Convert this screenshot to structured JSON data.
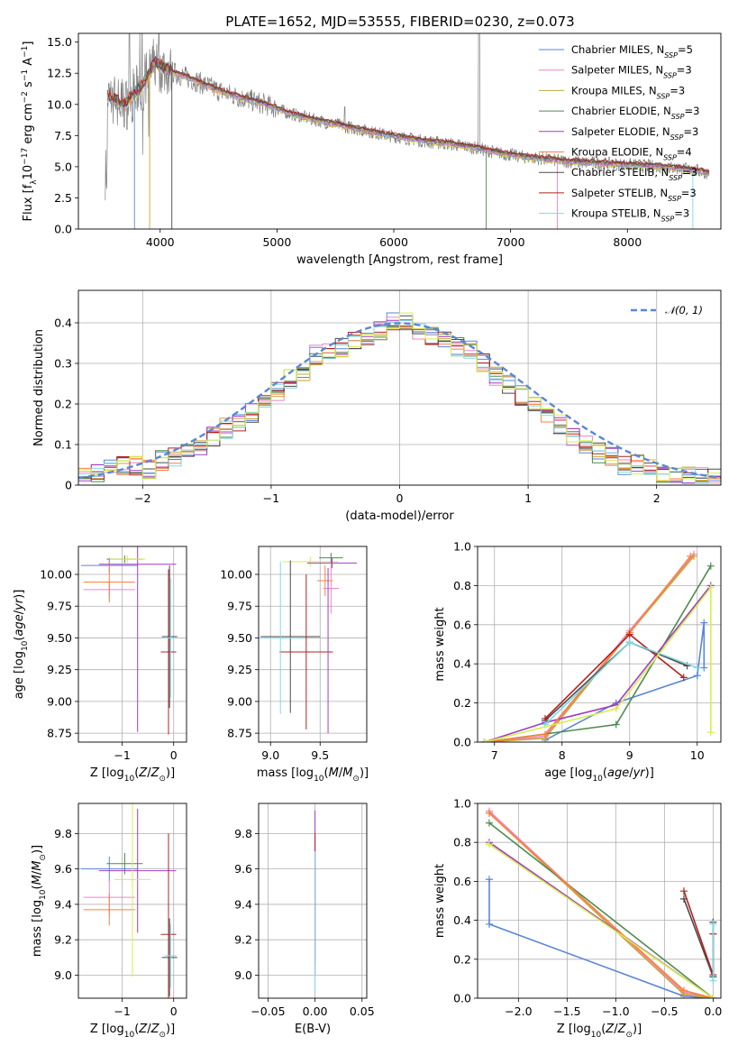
{
  "figure": {
    "title": "PLATE=1652, MJD=53555, FIBERID=0230, z=0.073"
  },
  "colors": {
    "series": [
      "#5a86d8",
      "#e887c4",
      "#c9a43a",
      "#4f8a4f",
      "#a23cc4",
      "#ff7f3f",
      "#4a4a4a",
      "#b22222",
      "#7fd9e6"
    ],
    "observed": "#808080",
    "lime": "#d4ef4a",
    "normal_curve": "#5a86d8"
  },
  "chart_data": [
    {
      "id": "spectrum",
      "type": "line",
      "xlabel": "wavelength [Angstrom, rest frame]",
      "ylabel": "Flux [f_λ10^-17 erg cm^-2 s^-1 A^-1]",
      "xlim": [
        3300,
        8800
      ],
      "ylim": [
        0,
        15.7
      ],
      "xticks": [
        4000,
        5000,
        6000,
        7000,
        8000
      ],
      "yticks": [
        0.0,
        2.5,
        5.0,
        7.5,
        10.0,
        12.5,
        15.0
      ],
      "grid": false,
      "legend_position": "top-right",
      "legend": [
        {
          "label": "Chabrier MILES, N",
          "sub": "SSP",
          "tail": "=5"
        },
        {
          "label": "Salpeter MILES, N",
          "sub": "SSP",
          "tail": "=3"
        },
        {
          "label": "Kroupa MILES, N",
          "sub": "SSP",
          "tail": "=3"
        },
        {
          "label": "Chabrier ELODIE, N",
          "sub": "SSP",
          "tail": "=3"
        },
        {
          "label": "Salpeter ELODIE, N",
          "sub": "SSP",
          "tail": "=3"
        },
        {
          "label": "Kroupa ELODIE, N",
          "sub": "SSP",
          "tail": "=4"
        },
        {
          "label": "Chabrier STELIB, N",
          "sub": "SSP",
          "tail": "=3"
        },
        {
          "label": "Salpeter STELIB, N",
          "sub": "SSP",
          "tail": "=3"
        },
        {
          "label": "Kroupa STELIB, N",
          "sub": "SSP",
          "tail": "=3"
        }
      ],
      "model_continuum": [
        [
          3550,
          10.6
        ],
        [
          3700,
          10.0
        ],
        [
          3850,
          11.5
        ],
        [
          3950,
          13.3
        ],
        [
          4100,
          12.6
        ],
        [
          4300,
          11.9
        ],
        [
          4500,
          11.1
        ],
        [
          4700,
          10.5
        ],
        [
          4900,
          10.0
        ],
        [
          5100,
          9.3
        ],
        [
          5300,
          8.8
        ],
        [
          5500,
          8.4
        ],
        [
          5700,
          8.0
        ],
        [
          5900,
          7.6
        ],
        [
          6100,
          7.3
        ],
        [
          6300,
          7.0
        ],
        [
          6500,
          6.8
        ],
        [
          6700,
          6.5
        ],
        [
          6900,
          6.1
        ],
        [
          7100,
          5.8
        ],
        [
          7300,
          5.6
        ],
        [
          7500,
          5.4
        ],
        [
          7700,
          5.3
        ],
        [
          7900,
          5.2
        ],
        [
          8100,
          5.1
        ],
        [
          8300,
          5.0
        ],
        [
          8500,
          4.8
        ],
        [
          8700,
          4.5
        ]
      ]
    },
    {
      "id": "residual-histogram",
      "type": "step",
      "xlabel": "(data-model)/error",
      "ylabel": "Normed distribution",
      "xlim": [
        -2.5,
        2.5
      ],
      "ylim": [
        0,
        0.48
      ],
      "xticks": [
        -2,
        -1,
        0,
        1,
        2
      ],
      "yticks": [
        0.0,
        0.1,
        0.2,
        0.3,
        0.4
      ],
      "grid": true,
      "legend_position": "top-right",
      "normal_label": "𝒩(0, 1)",
      "bin_width": 0.1,
      "bin_start": -2.5,
      "base_heights": [
        0.02,
        0.03,
        0.04,
        0.05,
        0.05,
        0.04,
        0.06,
        0.07,
        0.08,
        0.1,
        0.12,
        0.14,
        0.15,
        0.18,
        0.2,
        0.23,
        0.26,
        0.28,
        0.32,
        0.33,
        0.34,
        0.36,
        0.37,
        0.38,
        0.4,
        0.4,
        0.38,
        0.37,
        0.36,
        0.34,
        0.33,
        0.3,
        0.27,
        0.25,
        0.22,
        0.2,
        0.17,
        0.15,
        0.12,
        0.1,
        0.08,
        0.07,
        0.05,
        0.05,
        0.04,
        0.03,
        0.03,
        0.02,
        0.02,
        0.02
      ]
    },
    {
      "id": "age-vs-z",
      "type": "errorbar",
      "xlabel": "Z [log10(Z/Z⊙)]",
      "ylabel": "age [log10(age/yr)]",
      "xlim": [
        -1.85,
        0.25
      ],
      "ylim": [
        8.68,
        10.22
      ],
      "xticks": [
        -1,
        0
      ],
      "yticks": [
        8.75,
        9.0,
        9.25,
        9.5,
        9.75,
        10.0
      ],
      "grid": true,
      "points": [
        {
          "x": -1.25,
          "xerr": 0.55,
          "y": 10.07,
          "yerr": 0.06,
          "c": 0
        },
        {
          "x": -1.25,
          "xerr": 0.5,
          "y": 9.88,
          "yerr": 0.07,
          "c": 1
        },
        {
          "x": -1.25,
          "xerr": 0.5,
          "y": 9.94,
          "yerr": 0.16,
          "c": 5
        },
        {
          "x": -0.95,
          "xerr": 0.35,
          "y": 10.12,
          "yerr": 0.03,
          "c": 3
        },
        {
          "x": -0.7,
          "xerr": 0.75,
          "y": 10.08,
          "yerr": 1.32,
          "c": 4
        },
        {
          "x": -0.9,
          "xerr": 0.35,
          "y": 10.12,
          "yerr": 0.03,
          "c": 9
        },
        {
          "x": -0.1,
          "xerr": 0.15,
          "y": 9.39,
          "yerr": 0.65,
          "c": 7
        },
        {
          "x": -0.08,
          "xerr": 0.15,
          "y": 9.51,
          "yerr": 0.56,
          "c": 6
        },
        {
          "x": -0.06,
          "xerr": 0.12,
          "y": 9.5,
          "yerr": 0.47,
          "c": 8
        }
      ]
    },
    {
      "id": "age-vs-mass",
      "type": "errorbar",
      "xlabel": "mass [log10(M/M⊙)]",
      "ylabel": "",
      "xlim": [
        8.88,
        9.97
      ],
      "ylim": [
        8.68,
        10.22
      ],
      "xticks": [
        9.0,
        9.5
      ],
      "yticks": [
        8.75,
        9.0,
        9.25,
        9.5,
        9.75,
        10.0
      ],
      "grid": true,
      "points": [
        {
          "x": 9.4,
          "xerr": 0.28,
          "y": 10.1,
          "yerr": 0.04,
          "c": 9
        },
        {
          "x": 9.62,
          "xerr": 0.25,
          "y": 10.09,
          "yerr": 0.04,
          "c": 4
        },
        {
          "x": 9.61,
          "xerr": 0.12,
          "y": 10.13,
          "yerr": 0.04,
          "c": 3
        },
        {
          "x": 9.55,
          "xerr": 0.08,
          "y": 9.95,
          "yerr": 0.12,
          "c": 5
        },
        {
          "x": 9.61,
          "xerr": 0.08,
          "y": 9.89,
          "yerr": 0.2,
          "c": 1
        },
        {
          "x": 9.2,
          "xerr": 0.3,
          "y": 9.51,
          "yerr": 0.6,
          "c": 6
        },
        {
          "x": 9.36,
          "xerr": 0.27,
          "y": 9.39,
          "yerr": 0.61,
          "c": 7
        },
        {
          "x": 9.1,
          "xerr": 0.22,
          "y": 9.5,
          "yerr": 0.6,
          "c": 8
        },
        {
          "x": 9.58,
          "xerr": 0.0,
          "y": 9.4,
          "yerr": 0.65,
          "c": 4
        }
      ]
    },
    {
      "id": "weight-vs-age",
      "type": "line",
      "xlabel": "age [log10(age/yr)]",
      "ylabel": "mass weight",
      "xlim": [
        6.75,
        10.35
      ],
      "ylim": [
        0,
        1.0
      ],
      "xticks": [
        7,
        8,
        9,
        10
      ],
      "yticks": [
        0.0,
        0.2,
        0.4,
        0.6,
        0.8,
        1.0
      ],
      "grid": true,
      "series": [
        {
          "c": 0,
          "x": [
            7.75,
            8.8,
            10.0,
            10.1,
            10.1
          ],
          "y": [
            0.01,
            0.2,
            0.34,
            0.61,
            0.38
          ]
        },
        {
          "c": 1,
          "x": [
            6.85,
            7.75,
            9.0,
            9.95
          ],
          "y": [
            0.0,
            0.03,
            0.57,
            0.96
          ]
        },
        {
          "c": 2,
          "x": [
            6.85,
            7.75,
            9.0,
            9.95
          ],
          "y": [
            0.0,
            0.02,
            0.56,
            0.95
          ]
        },
        {
          "c": 3,
          "x": [
            6.85,
            8.8,
            10.2
          ],
          "y": [
            0.0,
            0.09,
            0.9
          ]
        },
        {
          "c": 4,
          "x": [
            6.85,
            7.75,
            8.8,
            10.2
          ],
          "y": [
            0.0,
            0.1,
            0.19,
            0.8
          ]
        },
        {
          "c": 5,
          "x": [
            6.85,
            7.75,
            9.0,
            9.9
          ],
          "y": [
            0.0,
            0.04,
            0.56,
            0.95
          ]
        },
        {
          "c": 6,
          "x": [
            7.75,
            9.0,
            9.85
          ],
          "y": [
            0.11,
            0.51,
            0.39
          ]
        },
        {
          "c": 7,
          "x": [
            7.75,
            9.0,
            9.8
          ],
          "y": [
            0.12,
            0.55,
            0.33
          ]
        },
        {
          "c": 8,
          "x": [
            7.75,
            9.0,
            10.0
          ],
          "y": [
            0.09,
            0.51,
            0.38
          ]
        },
        {
          "c": 9,
          "x": [
            6.85,
            8.8,
            10.2,
            10.2
          ],
          "y": [
            0.0,
            0.17,
            0.79,
            0.05
          ]
        }
      ]
    },
    {
      "id": "mass-vs-z",
      "type": "errorbar",
      "xlabel": "Z [log10(Z/Z⊙)]",
      "ylabel": "mass [log10(M/M⊙)]",
      "xlim": [
        -1.85,
        0.25
      ],
      "ylim": [
        8.87,
        9.97
      ],
      "xticks": [
        -1,
        0
      ],
      "yticks": [
        9.0,
        9.2,
        9.4,
        9.6,
        9.8
      ],
      "grid": true,
      "points": [
        {
          "x": -1.25,
          "xerr": 0.55,
          "y": 9.6,
          "yerr": 0.07,
          "c": 0
        },
        {
          "x": -1.25,
          "xerr": 0.5,
          "y": 9.44,
          "yerr": 0.1,
          "c": 1
        },
        {
          "x": -1.25,
          "xerr": 0.5,
          "y": 9.37,
          "yerr": 0.09,
          "c": 5
        },
        {
          "x": -0.95,
          "xerr": 0.35,
          "y": 9.63,
          "yerr": 0.06,
          "c": 3
        },
        {
          "x": -0.7,
          "xerr": 0.75,
          "y": 9.59,
          "yerr": 0.35,
          "c": 4
        },
        {
          "x": -0.8,
          "xerr": 0.35,
          "y": 9.54,
          "yerr": 0.55,
          "c": 9
        },
        {
          "x": -0.1,
          "xerr": 0.15,
          "y": 9.23,
          "yerr": 0.57,
          "c": 7
        },
        {
          "x": -0.08,
          "xerr": 0.15,
          "y": 9.1,
          "yerr": 0.22,
          "c": 6
        },
        {
          "x": -0.06,
          "xerr": 0.12,
          "y": 9.11,
          "yerr": 0.18,
          "c": 8
        }
      ]
    },
    {
      "id": "mass-vs-ebv",
      "type": "errorbar",
      "xlabel": "E(B-V)",
      "ylabel": "",
      "xlim": [
        -0.06,
        0.055
      ],
      "ylim": [
        8.87,
        9.97
      ],
      "xticks": [
        -0.05,
        0.0,
        0.05
      ],
      "yticks": [
        9.0,
        9.2,
        9.4,
        9.6,
        9.8
      ],
      "grid": true,
      "points": [
        {
          "x": 0.0,
          "xerr": 0.0,
          "y": 9.5,
          "yerr": 0.43,
          "c": 4
        },
        {
          "x": 0.0,
          "xerr": 0.0,
          "y": 9.4,
          "yerr": 0.4,
          "c": 7
        },
        {
          "x": 0.0,
          "xerr": 0.0,
          "y": 9.3,
          "yerr": 0.4,
          "c": 8
        }
      ]
    },
    {
      "id": "weight-vs-z",
      "type": "line",
      "xlabel": "Z [log10(Z/Z⊙)]",
      "ylabel": "mass weight",
      "xlim": [
        -2.42,
        0.08
      ],
      "ylim": [
        0,
        1.0
      ],
      "xticks": [
        -2.0,
        -1.5,
        -1.0,
        -0.5,
        0.0
      ],
      "yticks": [
        0.0,
        0.2,
        0.4,
        0.6,
        0.8,
        1.0
      ],
      "grid": true,
      "series": [
        {
          "c": 0,
          "x": [
            -2.3,
            -2.3,
            -0.3,
            0.0
          ],
          "y": [
            0.61,
            0.38,
            0.01,
            0.0
          ]
        },
        {
          "c": 1,
          "x": [
            -2.3,
            -0.3,
            0.0
          ],
          "y": [
            0.96,
            0.03,
            0.0
          ]
        },
        {
          "c": 2,
          "x": [
            -2.3,
            -0.3,
            0.0
          ],
          "y": [
            0.95,
            0.02,
            0.0
          ]
        },
        {
          "c": 3,
          "x": [
            -2.3,
            0.0
          ],
          "y": [
            0.9,
            0.0
          ]
        },
        {
          "c": 4,
          "x": [
            -2.3,
            0.0
          ],
          "y": [
            0.8,
            0.0
          ]
        },
        {
          "c": 5,
          "x": [
            -2.3,
            -0.3,
            0.0
          ],
          "y": [
            0.95,
            0.04,
            0.0
          ]
        },
        {
          "c": 6,
          "x": [
            -0.3,
            0.0,
            0.0
          ],
          "y": [
            0.51,
            0.11,
            0.39
          ]
        },
        {
          "c": 7,
          "x": [
            -0.3,
            0.0,
            0.0
          ],
          "y": [
            0.55,
            0.12,
            0.33
          ]
        },
        {
          "c": 8,
          "x": [
            0.0,
            0.0
          ],
          "y": [
            0.38,
            0.09
          ]
        },
        {
          "c": 9,
          "x": [
            -2.3,
            0.0
          ],
          "y": [
            0.79,
            0.0
          ]
        }
      ]
    }
  ]
}
